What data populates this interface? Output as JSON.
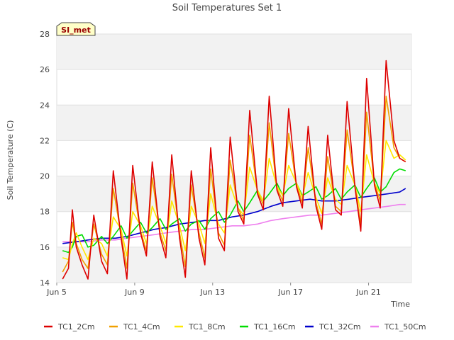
{
  "chart_data": {
    "type": "line",
    "title": "Soil Temperatures Set 1",
    "xlabel": "Time",
    "ylabel": "Soil Temperature (C)",
    "badge": "SI_met",
    "x_range_days": [
      5,
      23.2
    ],
    "ylim": [
      14,
      28
    ],
    "yticks": [
      14,
      16,
      18,
      20,
      22,
      24,
      26,
      28
    ],
    "xticks": [
      {
        "value": 5,
        "label": "Jun 5"
      },
      {
        "value": 9,
        "label": "Jun 9"
      },
      {
        "value": 13,
        "label": "Jun 13"
      },
      {
        "value": 17,
        "label": "Jun 17"
      },
      {
        "value": 21,
        "label": "Jun 21"
      }
    ],
    "grid": true,
    "legend_position": "bottom",
    "series": [
      {
        "name": "TC1_2Cm",
        "color": "#dd0000",
        "key": "tc1_2cm",
        "x": [
          5.3,
          5.6,
          5.8,
          6.0,
          6.3,
          6.6,
          6.9,
          7.3,
          7.6,
          7.9,
          8.3,
          8.6,
          8.9,
          9.3,
          9.6,
          9.9,
          10.3,
          10.6,
          10.9,
          11.3,
          11.6,
          11.9,
          12.3,
          12.6,
          12.9,
          13.3,
          13.6,
          13.9,
          14.3,
          14.6,
          14.9,
          15.3,
          15.6,
          15.9,
          16.3,
          16.6,
          16.9,
          17.3,
          17.6,
          17.9,
          18.3,
          18.6,
          18.9,
          19.3,
          19.6,
          19.9,
          20.3,
          20.6,
          20.9,
          21.3,
          21.6,
          21.9,
          22.3,
          22.6,
          22.9
        ],
        "y": [
          14.2,
          14.8,
          18.1,
          16.0,
          15.0,
          14.2,
          17.8,
          15.2,
          14.5,
          20.3,
          16.5,
          14.2,
          20.6,
          16.8,
          15.5,
          20.8,
          16.6,
          15.4,
          21.2,
          16.5,
          14.3,
          20.3,
          16.5,
          15.0,
          21.6,
          16.5,
          15.8,
          22.2,
          18.0,
          17.3,
          23.7,
          19.0,
          18.1,
          24.5,
          19.2,
          18.3,
          23.8,
          19.4,
          18.2,
          22.8,
          18.3,
          17.0,
          22.3,
          18.1,
          17.8,
          24.2,
          19.4,
          16.9,
          25.5,
          19.5,
          18.2,
          26.5,
          22.0,
          21.0,
          20.8
        ]
      },
      {
        "name": "TC1_4Cm",
        "color": "#f0a000",
        "key": "tc1_4cm",
        "x": [
          5.3,
          5.6,
          5.8,
          6.0,
          6.3,
          6.6,
          6.9,
          7.3,
          7.6,
          7.9,
          8.3,
          8.6,
          8.9,
          9.3,
          9.6,
          9.9,
          10.3,
          10.6,
          10.9,
          11.3,
          11.6,
          11.9,
          12.3,
          12.6,
          12.9,
          13.3,
          13.6,
          13.9,
          14.3,
          14.6,
          14.9,
          15.3,
          15.6,
          15.9,
          16.3,
          16.6,
          16.9,
          17.3,
          17.6,
          17.9,
          18.3,
          18.6,
          18.9,
          19.3,
          19.6,
          19.9,
          20.3,
          20.6,
          20.9,
          21.3,
          21.6,
          21.9,
          22.3,
          22.6,
          22.9
        ],
        "y": [
          14.6,
          15.2,
          17.4,
          16.2,
          15.3,
          14.8,
          17.3,
          15.6,
          15.0,
          19.3,
          16.7,
          14.8,
          19.6,
          16.9,
          15.8,
          19.9,
          16.8,
          15.8,
          20.1,
          16.8,
          14.9,
          19.5,
          16.8,
          15.4,
          20.4,
          16.8,
          16.1,
          20.9,
          18.2,
          17.5,
          22.3,
          19.1,
          18.4,
          23.0,
          19.3,
          18.6,
          22.4,
          19.5,
          18.5,
          21.6,
          18.5,
          17.3,
          21.1,
          18.3,
          18.0,
          22.6,
          19.5,
          17.3,
          23.6,
          19.6,
          18.6,
          24.5,
          21.6,
          21.0,
          20.8
        ]
      },
      {
        "name": "TC1_8Cm",
        "color": "#ffe800",
        "key": "tc1_8cm",
        "x": [
          5.3,
          5.6,
          5.8,
          6.0,
          6.3,
          6.6,
          6.9,
          7.3,
          7.6,
          7.9,
          8.3,
          8.6,
          8.9,
          9.3,
          9.6,
          9.9,
          10.3,
          10.6,
          10.9,
          11.3,
          11.6,
          11.9,
          12.3,
          12.6,
          12.9,
          13.3,
          13.6,
          13.9,
          14.3,
          14.6,
          14.9,
          15.3,
          15.6,
          15.9,
          16.3,
          16.6,
          16.9,
          17.3,
          17.6,
          17.9,
          18.3,
          18.6,
          18.9,
          19.3,
          19.6,
          19.9,
          20.3,
          20.6,
          20.9,
          21.3,
          21.6,
          21.9,
          22.3,
          22.6,
          22.9
        ],
        "y": [
          15.4,
          15.3,
          16.2,
          16.8,
          16.0,
          15.3,
          16.5,
          16.2,
          15.5,
          17.7,
          17.0,
          15.5,
          18.0,
          17.2,
          16.2,
          18.3,
          17.2,
          16.2,
          18.6,
          17.2,
          15.8,
          18.3,
          17.3,
          16.2,
          19.0,
          17.3,
          16.8,
          19.5,
          18.2,
          17.8,
          20.5,
          19.2,
          18.6,
          21.0,
          19.4,
          18.9,
          20.6,
          19.6,
          18.8,
          20.2,
          18.8,
          17.9,
          19.9,
          18.7,
          18.4,
          20.6,
          19.5,
          18.0,
          21.2,
          19.6,
          19.0,
          22.0,
          21.0,
          21.2,
          20.9
        ]
      },
      {
        "name": "TC1_16Cm",
        "color": "#00dd00",
        "key": "tc1_16cm",
        "x": [
          5.3,
          5.6,
          5.8,
          6.0,
          6.3,
          6.6,
          6.9,
          7.3,
          7.6,
          7.9,
          8.3,
          8.6,
          8.9,
          9.3,
          9.6,
          9.9,
          10.3,
          10.6,
          10.9,
          11.3,
          11.6,
          11.9,
          12.3,
          12.6,
          12.9,
          13.3,
          13.6,
          13.9,
          14.3,
          14.6,
          14.9,
          15.3,
          15.6,
          15.9,
          16.3,
          16.6,
          16.9,
          17.3,
          17.6,
          17.9,
          18.3,
          18.6,
          18.9,
          19.3,
          19.6,
          19.9,
          20.3,
          20.6,
          20.9,
          21.3,
          21.6,
          21.9,
          22.3,
          22.6,
          22.9
        ],
        "y": [
          15.8,
          15.7,
          16.0,
          16.6,
          16.7,
          16.0,
          16.1,
          16.6,
          16.2,
          16.6,
          17.2,
          16.5,
          16.9,
          17.4,
          16.8,
          17.1,
          17.6,
          17.0,
          17.3,
          17.6,
          16.9,
          17.3,
          17.5,
          17.0,
          17.6,
          18.0,
          17.4,
          17.8,
          18.6,
          18.0,
          18.5,
          19.2,
          18.6,
          19.0,
          19.6,
          18.9,
          19.3,
          19.6,
          18.9,
          19.1,
          19.4,
          18.7,
          18.9,
          19.3,
          18.7,
          19.1,
          19.5,
          18.8,
          19.3,
          19.9,
          19.1,
          19.4,
          20.2,
          20.4,
          20.3
        ]
      },
      {
        "name": "TC1_32Cm",
        "color": "#0000cc",
        "key": "tc1_32cm",
        "x": [
          5.3,
          6.0,
          6.6,
          7.3,
          8.0,
          8.6,
          9.3,
          10.0,
          10.6,
          11.3,
          12.0,
          12.6,
          13.3,
          14.0,
          14.6,
          15.3,
          16.0,
          16.6,
          17.3,
          18.0,
          18.6,
          19.3,
          20.0,
          20.6,
          21.3,
          22.0,
          22.6,
          22.9
        ],
        "y": [
          16.2,
          16.3,
          16.4,
          16.5,
          16.5,
          16.6,
          16.8,
          17.0,
          17.1,
          17.3,
          17.4,
          17.5,
          17.5,
          17.7,
          17.8,
          18.0,
          18.3,
          18.5,
          18.6,
          18.7,
          18.6,
          18.6,
          18.7,
          18.8,
          18.9,
          19.0,
          19.1,
          19.3
        ]
      },
      {
        "name": "TC1_50Cm",
        "color": "#ee80ee",
        "key": "tc1_50cm",
        "x": [
          5.3,
          6.0,
          6.6,
          7.3,
          8.0,
          8.6,
          9.3,
          10.0,
          10.6,
          11.3,
          12.0,
          12.6,
          13.3,
          14.0,
          14.6,
          15.3,
          16.0,
          16.6,
          17.3,
          18.0,
          18.6,
          19.3,
          20.0,
          20.6,
          21.3,
          22.0,
          22.6,
          22.9
        ],
        "y": [
          16.3,
          16.3,
          16.3,
          16.4,
          16.4,
          16.5,
          16.6,
          16.7,
          16.8,
          16.9,
          17.0,
          17.0,
          17.1,
          17.2,
          17.2,
          17.3,
          17.5,
          17.6,
          17.7,
          17.8,
          17.8,
          17.9,
          18.0,
          18.1,
          18.2,
          18.3,
          18.4,
          18.4
        ]
      }
    ]
  }
}
